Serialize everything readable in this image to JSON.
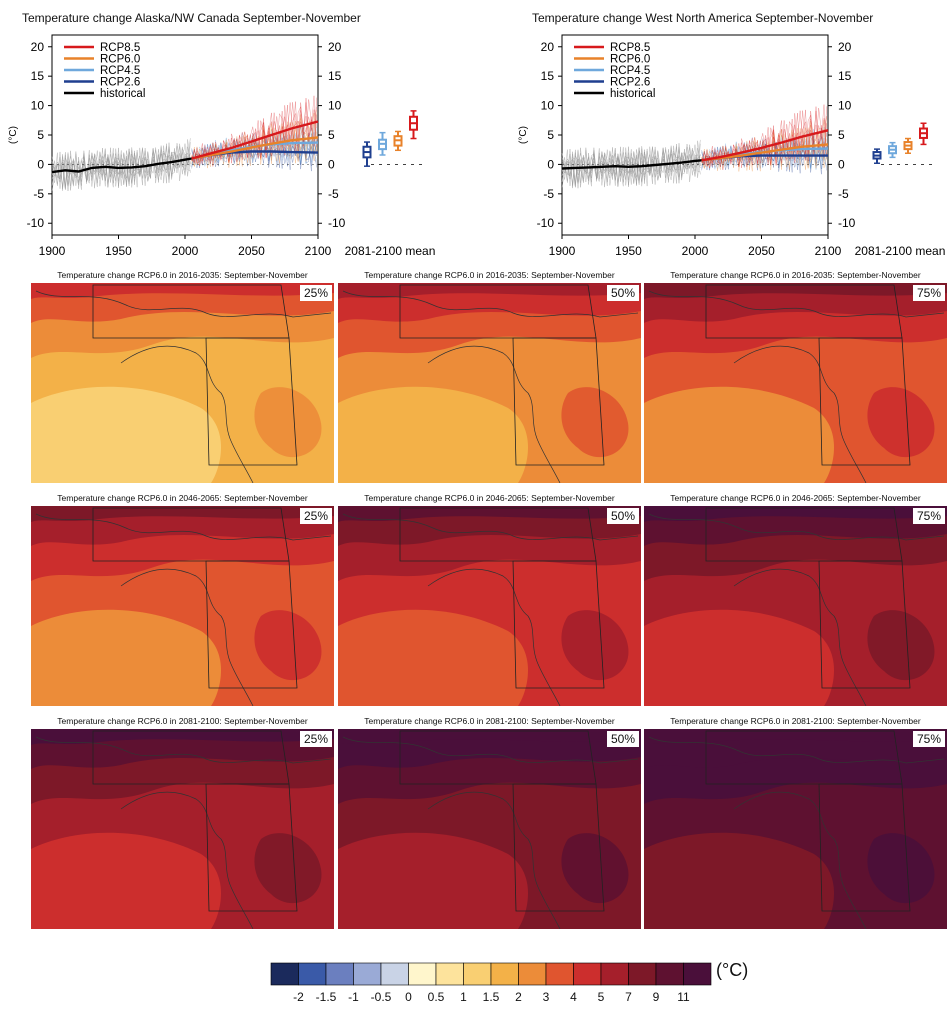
{
  "chart_data": [
    {
      "type": "line",
      "title": "Temperature change Alaska/NW Canada September-November",
      "ylabel": "(°C)",
      "xlim": [
        1900,
        2100
      ],
      "ylim": [
        -12,
        22
      ],
      "x_ticks": [
        "1900",
        "1950",
        "2000",
        "2050",
        "2100"
      ],
      "y_ticks": [
        "20",
        "15",
        "10",
        "5",
        "0",
        "-5",
        "-10"
      ],
      "mean_axis_label": "2081-2100 mean",
      "legend": [
        "RCP8.5",
        "RCP6.0",
        "RCP4.5",
        "RCP2.6",
        "historical"
      ],
      "series": [
        {
          "name": "historical",
          "color": "#000000",
          "x": [
            1900,
            1910,
            1920,
            1930,
            1940,
            1950,
            1960,
            1970,
            1980,
            1990,
            2000,
            2005
          ],
          "y": [
            -1.3,
            -1.0,
            -1.2,
            -0.6,
            -0.4,
            -0.6,
            -0.5,
            -0.3,
            0.1,
            0.4,
            0.8,
            1.0
          ]
        },
        {
          "name": "RCP2.6",
          "color": "#1f3f8f",
          "x": [
            2005,
            2020,
            2035,
            2050,
            2065,
            2080,
            2100
          ],
          "y": [
            1.0,
            1.6,
            2.0,
            2.2,
            2.2,
            2.1,
            2.0
          ]
        },
        {
          "name": "RCP4.5",
          "color": "#6fa8dc",
          "x": [
            2005,
            2020,
            2035,
            2050,
            2065,
            2080,
            2100
          ],
          "y": [
            1.0,
            1.8,
            2.4,
            3.0,
            3.4,
            3.6,
            3.7
          ]
        },
        {
          "name": "RCP6.0",
          "color": "#e8822a",
          "x": [
            2005,
            2020,
            2035,
            2050,
            2065,
            2080,
            2100
          ],
          "y": [
            1.0,
            1.6,
            2.2,
            2.9,
            3.5,
            4.1,
            4.6
          ]
        },
        {
          "name": "RCP8.5",
          "color": "#d7191c",
          "x": [
            2005,
            2020,
            2035,
            2050,
            2065,
            2080,
            2100
          ],
          "y": [
            1.0,
            1.9,
            2.8,
            3.9,
            5.0,
            6.1,
            7.3
          ]
        }
      ],
      "mean_boxes": [
        {
          "name": "RCP2.6",
          "median": 2.1,
          "q1": 1.2,
          "q3": 3.0,
          "min": -0.3,
          "max": 3.8
        },
        {
          "name": "RCP4.5",
          "median": 3.5,
          "q1": 2.6,
          "q3": 4.2,
          "min": 1.6,
          "max": 5.4
        },
        {
          "name": "RCP6.0",
          "median": 4.1,
          "q1": 3.2,
          "q3": 4.8,
          "min": 2.4,
          "max": 5.6
        },
        {
          "name": "RCP8.5",
          "median": 7.0,
          "q1": 5.9,
          "q3": 8.1,
          "min": 4.4,
          "max": 9.1
        }
      ]
    },
    {
      "type": "line",
      "title": "Temperature change West North America September-November",
      "ylabel": "(°C)",
      "xlim": [
        1900,
        2100
      ],
      "ylim": [
        -12,
        22
      ],
      "x_ticks": [
        "1900",
        "1950",
        "2000",
        "2050",
        "2100"
      ],
      "y_ticks": [
        "20",
        "15",
        "10",
        "5",
        "0",
        "-5",
        "-10"
      ],
      "mean_axis_label": "2081-2100 mean",
      "legend": [
        "RCP8.5",
        "RCP6.0",
        "RCP4.5",
        "RCP2.6",
        "historical"
      ],
      "series": [
        {
          "name": "historical",
          "color": "#000000",
          "x": [
            1900,
            1910,
            1920,
            1930,
            1940,
            1950,
            1960,
            1970,
            1980,
            1990,
            2000,
            2005
          ],
          "y": [
            -0.7,
            -0.6,
            -0.5,
            -0.4,
            -0.3,
            -0.4,
            -0.3,
            -0.1,
            0.1,
            0.3,
            0.6,
            0.7
          ]
        },
        {
          "name": "RCP2.6",
          "color": "#1f3f8f",
          "x": [
            2005,
            2020,
            2035,
            2050,
            2065,
            2080,
            2100
          ],
          "y": [
            0.7,
            1.1,
            1.4,
            1.5,
            1.5,
            1.5,
            1.5
          ]
        },
        {
          "name": "RCP4.5",
          "color": "#6fa8dc",
          "x": [
            2005,
            2020,
            2035,
            2050,
            2065,
            2080,
            2100
          ],
          "y": [
            0.7,
            1.2,
            1.7,
            2.1,
            2.4,
            2.6,
            2.7
          ]
        },
        {
          "name": "RCP6.0",
          "color": "#e8822a",
          "x": [
            2005,
            2020,
            2035,
            2050,
            2065,
            2080,
            2100
          ],
          "y": [
            0.7,
            1.1,
            1.5,
            2.0,
            2.5,
            3.0,
            3.4
          ]
        },
        {
          "name": "RCP8.5",
          "color": "#d7191c",
          "x": [
            2005,
            2020,
            2035,
            2050,
            2065,
            2080,
            2100
          ],
          "y": [
            0.7,
            1.3,
            2.0,
            2.8,
            3.7,
            4.7,
            5.8
          ]
        }
      ],
      "mean_boxes": [
        {
          "name": "RCP2.6",
          "median": 1.5,
          "q1": 1.0,
          "q3": 2.1,
          "min": 0.2,
          "max": 2.6
        },
        {
          "name": "RCP4.5",
          "median": 2.5,
          "q1": 1.9,
          "q3": 3.1,
          "min": 1.2,
          "max": 3.7
        },
        {
          "name": "RCP6.0",
          "median": 3.2,
          "q1": 2.6,
          "q3": 3.8,
          "min": 1.9,
          "max": 4.4
        },
        {
          "name": "RCP8.5",
          "median": 5.3,
          "q1": 4.5,
          "q3": 6.1,
          "min": 3.4,
          "max": 7.0
        }
      ]
    },
    {
      "type": "heatmap",
      "panels": [
        {
          "title": "Temperature change RCP6.0 in 2016-2035: September-November",
          "percentile": "25%",
          "level": 1
        },
        {
          "title": "Temperature change RCP6.0 in 2016-2035: September-November",
          "percentile": "50%",
          "level": 2
        },
        {
          "title": "Temperature change RCP6.0 in 2016-2035: September-November",
          "percentile": "75%",
          "level": 3
        },
        {
          "title": "Temperature change RCP6.0 in 2046-2065: September-November",
          "percentile": "25%",
          "level": 3
        },
        {
          "title": "Temperature change RCP6.0 in 2046-2065: September-November",
          "percentile": "50%",
          "level": 4
        },
        {
          "title": "Temperature change RCP6.0 in 2046-2065: September-November",
          "percentile": "75%",
          "level": 5
        },
        {
          "title": "Temperature change RCP6.0 in 2081-2100: September-November",
          "percentile": "25%",
          "level": 5
        },
        {
          "title": "Temperature change RCP6.0 in 2081-2100: September-November",
          "percentile": "50%",
          "level": 6
        },
        {
          "title": "Temperature change RCP6.0 in 2081-2100: September-November",
          "percentile": "75%",
          "level": 7
        }
      ],
      "colorbar": {
        "unit": "(°C)",
        "ticks": [
          "-2",
          "-1.5",
          "-1",
          "-0.5",
          "0",
          "0.5",
          "1",
          "1.5",
          "2",
          "3",
          "4",
          "5",
          "7",
          "9",
          "11"
        ],
        "colors": [
          "#1b2a5c",
          "#3a5aa8",
          "#6b7fbf",
          "#9aaad6",
          "#c9d3e6",
          "#fff6cc",
          "#fde39c",
          "#f9cf72",
          "#f3b148",
          "#ec8c39",
          "#e0552f",
          "#cc2e2d",
          "#a51f2b",
          "#7d1828",
          "#5e1130",
          "#4a0f3a"
        ]
      }
    }
  ]
}
